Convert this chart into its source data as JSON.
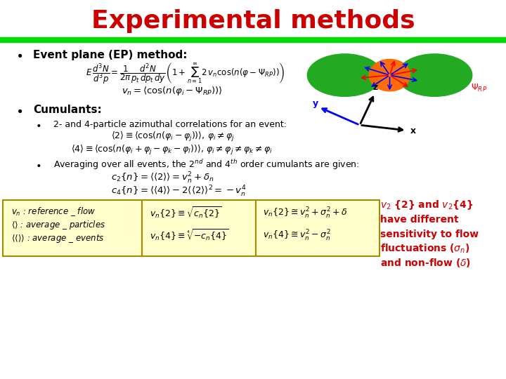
{
  "title": "Experimental methods",
  "title_color": "#CC0000",
  "title_fontsize": 26,
  "bg_color": "#FFFFFF",
  "header_bar_color": "#00DD00",
  "bullet1_text": "Event plane (EP) method:",
  "bullet2_text": "Cumulants:",
  "sub_bullet1": "2- and 4-particle azimuthal correlations for an event:",
  "sub_bullet2": "Averaging over all events, the $2^{nd}$ and $4^{th}$ order cumulants are given:",
  "red_text_lines": [
    "$v_2$ {2} and $v_2${4}",
    "have different",
    "sensitivity to flow",
    "fluctuations ($\\sigma_n$)",
    "and non-flow ($\\delta$)"
  ],
  "red_text_color": "#CC0000",
  "box_bg_color": "#FFFFCC",
  "box_border_color": "#AA8800"
}
